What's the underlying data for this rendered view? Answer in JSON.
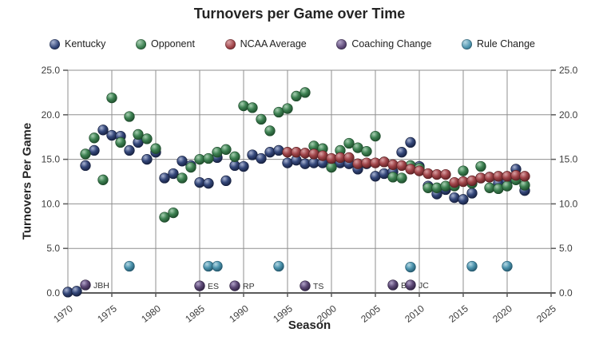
{
  "page": {
    "title": "Turnovers per Game over Time"
  },
  "chart_data": {
    "type": "scatter",
    "title": "Turnovers per Game over Time",
    "xlabel": "Season",
    "ylabel": "Turnovers Per Game",
    "xlim": [
      1970,
      2025
    ],
    "ylim": [
      0,
      25
    ],
    "xticks": [
      1970,
      1975,
      1980,
      1985,
      1990,
      1995,
      2000,
      2005,
      2010,
      2015,
      2020,
      2025
    ],
    "yticks": [
      0,
      5,
      10,
      15,
      20,
      25
    ],
    "grid": true,
    "legend_position": "top",
    "colors": {
      "kentucky": "#34477a",
      "opponent": "#3d8152",
      "ncaa_average": "#a04449",
      "coaching_change": "#5e4a78",
      "rule_change": "#4e95af",
      "gridline": "#8f8f8f",
      "axis": "#5a5a5a"
    },
    "series": [
      {
        "name": "Kentucky",
        "color": "#34477a",
        "light": "#a9b4d2",
        "dark": "#16203f",
        "points": [
          [
            1970,
            0.1
          ],
          [
            1971,
            0.2
          ],
          [
            1972,
            14.3
          ],
          [
            1973,
            16.0
          ],
          [
            1974,
            18.3
          ],
          [
            1975,
            17.7
          ],
          [
            1976,
            17.6
          ],
          [
            1977,
            16.0
          ],
          [
            1978,
            16.9
          ],
          [
            1979,
            15.0
          ],
          [
            1980,
            15.8
          ],
          [
            1981,
            12.9
          ],
          [
            1982,
            13.4
          ],
          [
            1983,
            14.8
          ],
          [
            1984,
            14.3
          ],
          [
            1985,
            12.4
          ],
          [
            1986,
            12.3
          ],
          [
            1987,
            15.2
          ],
          [
            1988,
            12.6
          ],
          [
            1989,
            14.3
          ],
          [
            1990,
            14.2
          ],
          [
            1991,
            15.5
          ],
          [
            1992,
            15.1
          ],
          [
            1993,
            15.8
          ],
          [
            1994,
            16.0
          ],
          [
            1995,
            14.6
          ],
          [
            1996,
            14.9
          ],
          [
            1997,
            14.5
          ],
          [
            1998,
            14.6
          ],
          [
            1999,
            14.6
          ],
          [
            2000,
            14.3
          ],
          [
            2001,
            14.6
          ],
          [
            2002,
            14.5
          ],
          [
            2003,
            13.9
          ],
          [
            2004,
            14.5
          ],
          [
            2005,
            13.1
          ],
          [
            2006,
            13.4
          ],
          [
            2007,
            13.6
          ],
          [
            2008,
            15.8
          ],
          [
            2009,
            16.9
          ],
          [
            2010,
            14.2
          ],
          [
            2011,
            12.0
          ],
          [
            2012,
            11.1
          ],
          [
            2013,
            11.6
          ],
          [
            2014,
            10.7
          ],
          [
            2015,
            10.5
          ],
          [
            2016,
            11.2
          ],
          [
            2017,
            12.9
          ],
          [
            2018,
            13.0
          ],
          [
            2019,
            12.3
          ],
          [
            2020,
            12.5
          ],
          [
            2021,
            13.9
          ],
          [
            2022,
            11.5
          ]
        ]
      },
      {
        "name": "Opponent",
        "color": "#3d8152",
        "light": "#a8cfb2",
        "dark": "#1d4a2a",
        "points": [
          [
            1972,
            15.6
          ],
          [
            1973,
            17.4
          ],
          [
            1974,
            12.7
          ],
          [
            1975,
            21.9
          ],
          [
            1976,
            16.9
          ],
          [
            1977,
            19.8
          ],
          [
            1978,
            17.8
          ],
          [
            1979,
            17.3
          ],
          [
            1980,
            16.2
          ],
          [
            1981,
            8.5
          ],
          [
            1982,
            9.0
          ],
          [
            1983,
            12.9
          ],
          [
            1984,
            14.1
          ],
          [
            1985,
            15.0
          ],
          [
            1986,
            15.1
          ],
          [
            1987,
            15.8
          ],
          [
            1988,
            16.1
          ],
          [
            1989,
            15.3
          ],
          [
            1990,
            21.0
          ],
          [
            1991,
            20.8
          ],
          [
            1992,
            19.5
          ],
          [
            1993,
            18.2
          ],
          [
            1994,
            20.3
          ],
          [
            1995,
            20.7
          ],
          [
            1996,
            22.1
          ],
          [
            1997,
            22.5
          ],
          [
            1998,
            16.5
          ],
          [
            1999,
            16.2
          ],
          [
            2000,
            14.1
          ],
          [
            2001,
            16.0
          ],
          [
            2002,
            16.8
          ],
          [
            2003,
            16.3
          ],
          [
            2004,
            15.9
          ],
          [
            2005,
            17.6
          ],
          [
            2006,
            14.7
          ],
          [
            2007,
            13.0
          ],
          [
            2008,
            12.9
          ],
          [
            2009,
            14.3
          ],
          [
            2010,
            14.0
          ],
          [
            2011,
            11.8
          ],
          [
            2012,
            11.8
          ],
          [
            2013,
            12.0
          ],
          [
            2014,
            12.0
          ],
          [
            2015,
            13.7
          ],
          [
            2016,
            12.3
          ],
          [
            2017,
            14.2
          ],
          [
            2018,
            11.8
          ],
          [
            2019,
            11.7
          ],
          [
            2020,
            12.0
          ],
          [
            2021,
            12.7
          ],
          [
            2022,
            12.1
          ]
        ]
      },
      {
        "name": "NCAA Average",
        "color": "#a04449",
        "light": "#d9a2a5",
        "dark": "#5c2023",
        "points": [
          [
            1995,
            15.8
          ],
          [
            1996,
            15.8
          ],
          [
            1997,
            15.7
          ],
          [
            1998,
            15.6
          ],
          [
            1999,
            15.4
          ],
          [
            2000,
            15.1
          ],
          [
            2001,
            15.2
          ],
          [
            2002,
            15.2
          ],
          [
            2003,
            14.5
          ],
          [
            2004,
            14.6
          ],
          [
            2005,
            14.6
          ],
          [
            2006,
            14.7
          ],
          [
            2007,
            14.4
          ],
          [
            2008,
            14.3
          ],
          [
            2009,
            13.9
          ],
          [
            2010,
            13.7
          ],
          [
            2011,
            13.4
          ],
          [
            2012,
            13.3
          ],
          [
            2013,
            13.3
          ],
          [
            2014,
            12.4
          ],
          [
            2015,
            12.5
          ],
          [
            2016,
            12.6
          ],
          [
            2017,
            12.9
          ],
          [
            2018,
            13.0
          ],
          [
            2019,
            13.1
          ],
          [
            2020,
            13.1
          ],
          [
            2021,
            13.2
          ],
          [
            2022,
            13.1
          ]
        ]
      },
      {
        "name": "Coaching Change",
        "color": "#5e4a78",
        "light": "#b2a4c8",
        "dark": "#2e2140",
        "points": [
          [
            1972,
            0.9
          ],
          [
            1985,
            0.8
          ],
          [
            1989,
            0.8
          ],
          [
            1997,
            0.8
          ],
          [
            2007,
            0.9
          ],
          [
            2009,
            0.9
          ]
        ],
        "point_labels": [
          "JBH",
          "ES",
          "RP",
          "TS",
          "BG",
          "JC"
        ]
      },
      {
        "name": "Rule Change",
        "color": "#4e95af",
        "light": "#b5d8e4",
        "dark": "#23576c",
        "points": [
          [
            1977,
            3.0
          ],
          [
            1986,
            3.0
          ],
          [
            1987,
            3.0
          ],
          [
            1994,
            3.0
          ],
          [
            2009,
            2.9
          ],
          [
            2016,
            3.0
          ],
          [
            2020,
            3.0
          ]
        ]
      }
    ]
  }
}
